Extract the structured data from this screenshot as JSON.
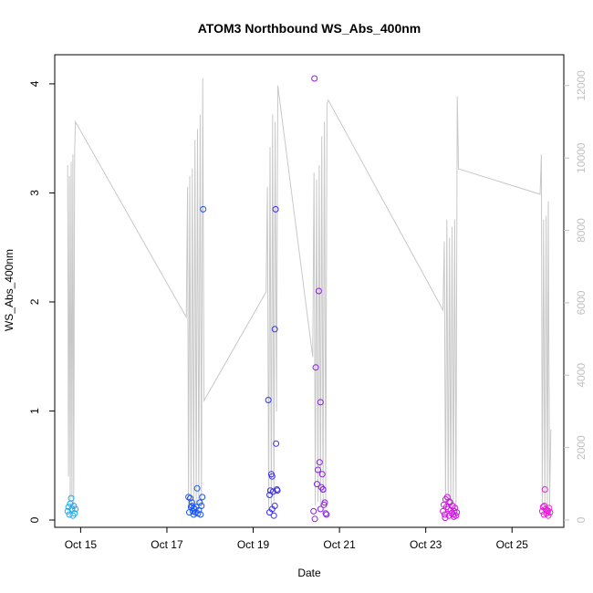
{
  "chart_data": {
    "type": "scatter",
    "title": "ATOM3 Northbound WS_Abs_400nm",
    "xlabel": "Date",
    "ylabel": "WS_Abs_400nm",
    "xlim": [
      14.4,
      26.2
    ],
    "ylim": [
      0,
      4.15
    ],
    "y2lim": [
      0,
      12500
    ],
    "x_ticks": [
      {
        "value": 15,
        "label": "Oct 15"
      },
      {
        "value": 17,
        "label": "Oct 17"
      },
      {
        "value": 19,
        "label": "Oct 19"
      },
      {
        "value": 21,
        "label": "Oct 21"
      },
      {
        "value": 23,
        "label": "Oct 23"
      },
      {
        "value": 25,
        "label": "Oct 25"
      }
    ],
    "y_ticks": [
      0,
      1,
      2,
      3,
      4
    ],
    "y2_ticks": [
      0,
      2000,
      4000,
      6000,
      8000,
      10000,
      12000
    ],
    "grid": false,
    "series": [
      {
        "color": "#1fa8f0",
        "points": [
          [
            14.7,
            0.08
          ],
          [
            14.72,
            0.12
          ],
          [
            14.74,
            0.05
          ],
          [
            14.76,
            0.15
          ],
          [
            14.78,
            0.2
          ],
          [
            14.8,
            0.1
          ],
          [
            14.82,
            0.04
          ],
          [
            14.84,
            0.13
          ],
          [
            14.86,
            0.06
          ],
          [
            14.88,
            0.1
          ]
        ]
      },
      {
        "color": "#1a55f0",
        "points": [
          [
            17.5,
            0.21
          ],
          [
            17.52,
            0.07
          ],
          [
            17.54,
            0.2
          ],
          [
            17.56,
            0.12
          ],
          [
            17.58,
            0.16
          ],
          [
            17.6,
            0.08
          ],
          [
            17.62,
            0.05
          ],
          [
            17.64,
            0.1
          ],
          [
            17.66,
            0.07
          ],
          [
            17.68,
            0.12
          ],
          [
            17.7,
            0.29
          ],
          [
            17.72,
            0.06
          ],
          [
            17.74,
            0.09
          ],
          [
            17.76,
            0.16
          ],
          [
            17.78,
            0.05
          ],
          [
            17.8,
            0.13
          ],
          [
            17.82,
            0.21
          ],
          [
            17.84,
            2.85
          ],
          [
            17.58,
            0.13
          ],
          [
            17.62,
            0.11
          ]
        ]
      },
      {
        "color": "#3a2ef0",
        "points": [
          [
            19.35,
            1.1
          ],
          [
            19.38,
            0.07
          ],
          [
            19.4,
            0.27
          ],
          [
            19.42,
            0.42
          ],
          [
            19.44,
            0.4
          ],
          [
            19.46,
            0.26
          ],
          [
            19.48,
            0.04
          ],
          [
            19.5,
            0.13
          ],
          [
            19.52,
            2.85
          ],
          [
            19.5,
            1.75
          ],
          [
            19.53,
            0.7
          ],
          [
            19.55,
            0.28
          ],
          [
            19.56,
            0.27
          ],
          [
            19.38,
            0.23
          ],
          [
            19.44,
            0.1
          ]
        ]
      },
      {
        "color": "#8a1ee8",
        "points": [
          [
            20.42,
            4.05
          ],
          [
            20.45,
            1.4
          ],
          [
            20.48,
            0.33
          ],
          [
            20.5,
            0.46
          ],
          [
            20.52,
            2.1
          ],
          [
            20.54,
            0.53
          ],
          [
            20.56,
            1.08
          ],
          [
            20.58,
            0.3
          ],
          [
            20.6,
            0.42
          ],
          [
            20.62,
            0.28
          ],
          [
            20.64,
            0.14
          ],
          [
            20.66,
            0.16
          ],
          [
            20.68,
            0.06
          ],
          [
            20.7,
            0.05
          ],
          [
            20.4,
            0.08
          ],
          [
            20.43,
            0.01
          ],
          [
            20.56,
            0.1
          ],
          [
            20.62,
            0.28
          ]
        ]
      },
      {
        "color": "#cc18e0",
        "points": [
          [
            23.4,
            0.08
          ],
          [
            23.42,
            0.14
          ],
          [
            23.44,
            0.05
          ],
          [
            23.46,
            0.19
          ],
          [
            23.48,
            0.12
          ],
          [
            23.5,
            0.21
          ],
          [
            23.52,
            0.1
          ],
          [
            23.54,
            0.04
          ],
          [
            23.56,
            0.16
          ],
          [
            23.58,
            0.09
          ],
          [
            23.6,
            0.06
          ],
          [
            23.62,
            0.13
          ],
          [
            23.64,
            0.05
          ],
          [
            23.66,
            0.08
          ],
          [
            23.68,
            0.11
          ],
          [
            23.7,
            0.04
          ],
          [
            23.72,
            0.07
          ],
          [
            23.45,
            0.02
          ],
          [
            23.55,
            0.17
          ],
          [
            23.65,
            0.03
          ]
        ]
      },
      {
        "color": "#ee18d8",
        "points": [
          [
            25.7,
            0.08
          ],
          [
            25.72,
            0.12
          ],
          [
            25.74,
            0.05
          ],
          [
            25.76,
            0.28
          ],
          [
            25.78,
            0.1
          ],
          [
            25.8,
            0.06
          ],
          [
            25.82,
            0.09
          ],
          [
            25.84,
            0.04
          ],
          [
            25.86,
            0.11
          ],
          [
            25.88,
            0.07
          ],
          [
            25.75,
            0.13
          ],
          [
            25.83,
            0.08
          ]
        ]
      }
    ],
    "line_series": {
      "color": "#c8c8c8",
      "axis": "right",
      "points": [
        [
          14.7,
          9800
        ],
        [
          14.72,
          1200
        ],
        [
          14.74,
          9500
        ],
        [
          14.76,
          400
        ],
        [
          14.78,
          9900
        ],
        [
          14.8,
          600
        ],
        [
          14.82,
          10100
        ],
        [
          14.84,
          300
        ],
        [
          14.86,
          10200
        ],
        [
          14.88,
          11000
        ],
        [
          17.45,
          5600
        ],
        [
          17.48,
          9200
        ],
        [
          17.5,
          300
        ],
        [
          17.53,
          9500
        ],
        [
          17.56,
          400
        ],
        [
          17.59,
          9700
        ],
        [
          17.62,
          300
        ],
        [
          17.65,
          10500
        ],
        [
          17.68,
          400
        ],
        [
          17.71,
          10800
        ],
        [
          17.74,
          300
        ],
        [
          17.77,
          11200
        ],
        [
          17.8,
          300
        ],
        [
          17.83,
          12200
        ],
        [
          17.86,
          3300
        ],
        [
          19.3,
          6300
        ],
        [
          19.33,
          9200
        ],
        [
          19.36,
          300
        ],
        [
          19.39,
          10300
        ],
        [
          19.42,
          400
        ],
        [
          19.45,
          11200
        ],
        [
          19.48,
          500
        ],
        [
          19.51,
          11000
        ],
        [
          19.54,
          3000
        ],
        [
          19.57,
          12000
        ],
        [
          20.38,
          4500
        ],
        [
          20.41,
          9600
        ],
        [
          20.44,
          400
        ],
        [
          20.47,
          9400
        ],
        [
          20.5,
          500
        ],
        [
          20.53,
          9800
        ],
        [
          20.56,
          400
        ],
        [
          20.59,
          10600
        ],
        [
          20.62,
          500
        ],
        [
          20.65,
          11000
        ],
        [
          20.68,
          400
        ],
        [
          20.71,
          11500
        ],
        [
          20.74,
          11600
        ],
        [
          23.4,
          5800
        ],
        [
          23.43,
          7700
        ],
        [
          23.46,
          300
        ],
        [
          23.49,
          8300
        ],
        [
          23.52,
          400
        ],
        [
          23.55,
          7800
        ],
        [
          23.58,
          300
        ],
        [
          23.61,
          8100
        ],
        [
          23.64,
          400
        ],
        [
          23.67,
          8300
        ],
        [
          23.7,
          300
        ],
        [
          23.73,
          11700
        ],
        [
          23.76,
          9700
        ],
        [
          25.65,
          9000
        ],
        [
          25.68,
          10100
        ],
        [
          25.7,
          400
        ],
        [
          25.73,
          8300
        ],
        [
          25.76,
          300
        ],
        [
          25.79,
          8400
        ],
        [
          25.82,
          400
        ],
        [
          25.84,
          8800
        ],
        [
          25.87,
          400
        ],
        [
          25.9,
          2500
        ]
      ]
    }
  }
}
